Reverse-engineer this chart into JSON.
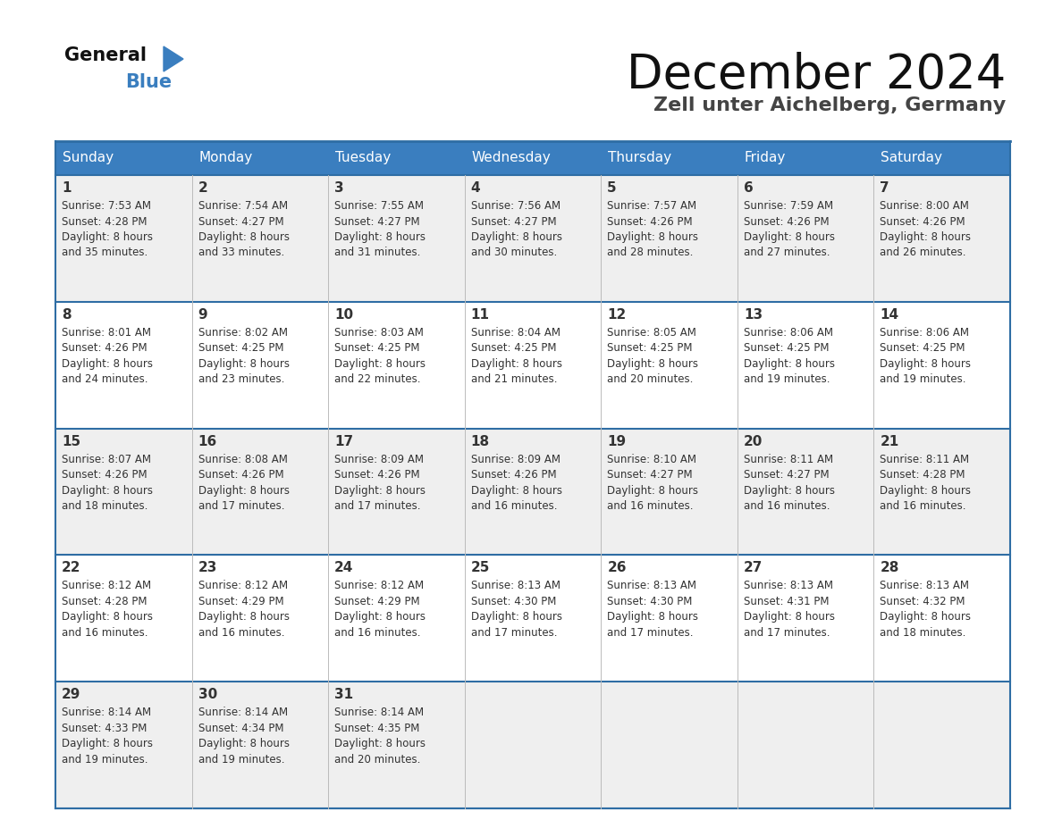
{
  "title": "December 2024",
  "subtitle": "Zell unter Aichelberg, Germany",
  "header_color": "#3a7ebf",
  "header_text_color": "#ffffff",
  "days_of_week": [
    "Sunday",
    "Monday",
    "Tuesday",
    "Wednesday",
    "Thursday",
    "Friday",
    "Saturday"
  ],
  "bg_color": "#ffffff",
  "cell_bg_even": "#efefef",
  "cell_bg_odd": "#ffffff",
  "row_separator_color": "#2e6da4",
  "text_color": "#333333",
  "calendar": [
    [
      {
        "day": 1,
        "sunrise": "7:53 AM",
        "sunset": "4:28 PM",
        "daylight_h": "8 hours",
        "daylight_m": "and 35 minutes."
      },
      {
        "day": 2,
        "sunrise": "7:54 AM",
        "sunset": "4:27 PM",
        "daylight_h": "8 hours",
        "daylight_m": "and 33 minutes."
      },
      {
        "day": 3,
        "sunrise": "7:55 AM",
        "sunset": "4:27 PM",
        "daylight_h": "8 hours",
        "daylight_m": "and 31 minutes."
      },
      {
        "day": 4,
        "sunrise": "7:56 AM",
        "sunset": "4:27 PM",
        "daylight_h": "8 hours",
        "daylight_m": "and 30 minutes."
      },
      {
        "day": 5,
        "sunrise": "7:57 AM",
        "sunset": "4:26 PM",
        "daylight_h": "8 hours",
        "daylight_m": "and 28 minutes."
      },
      {
        "day": 6,
        "sunrise": "7:59 AM",
        "sunset": "4:26 PM",
        "daylight_h": "8 hours",
        "daylight_m": "and 27 minutes."
      },
      {
        "day": 7,
        "sunrise": "8:00 AM",
        "sunset": "4:26 PM",
        "daylight_h": "8 hours",
        "daylight_m": "and 26 minutes."
      }
    ],
    [
      {
        "day": 8,
        "sunrise": "8:01 AM",
        "sunset": "4:26 PM",
        "daylight_h": "8 hours",
        "daylight_m": "and 24 minutes."
      },
      {
        "day": 9,
        "sunrise": "8:02 AM",
        "sunset": "4:25 PM",
        "daylight_h": "8 hours",
        "daylight_m": "and 23 minutes."
      },
      {
        "day": 10,
        "sunrise": "8:03 AM",
        "sunset": "4:25 PM",
        "daylight_h": "8 hours",
        "daylight_m": "and 22 minutes."
      },
      {
        "day": 11,
        "sunrise": "8:04 AM",
        "sunset": "4:25 PM",
        "daylight_h": "8 hours",
        "daylight_m": "and 21 minutes."
      },
      {
        "day": 12,
        "sunrise": "8:05 AM",
        "sunset": "4:25 PM",
        "daylight_h": "8 hours",
        "daylight_m": "and 20 minutes."
      },
      {
        "day": 13,
        "sunrise": "8:06 AM",
        "sunset": "4:25 PM",
        "daylight_h": "8 hours",
        "daylight_m": "and 19 minutes."
      },
      {
        "day": 14,
        "sunrise": "8:06 AM",
        "sunset": "4:25 PM",
        "daylight_h": "8 hours",
        "daylight_m": "and 19 minutes."
      }
    ],
    [
      {
        "day": 15,
        "sunrise": "8:07 AM",
        "sunset": "4:26 PM",
        "daylight_h": "8 hours",
        "daylight_m": "and 18 minutes."
      },
      {
        "day": 16,
        "sunrise": "8:08 AM",
        "sunset": "4:26 PM",
        "daylight_h": "8 hours",
        "daylight_m": "and 17 minutes."
      },
      {
        "day": 17,
        "sunrise": "8:09 AM",
        "sunset": "4:26 PM",
        "daylight_h": "8 hours",
        "daylight_m": "and 17 minutes."
      },
      {
        "day": 18,
        "sunrise": "8:09 AM",
        "sunset": "4:26 PM",
        "daylight_h": "8 hours",
        "daylight_m": "and 16 minutes."
      },
      {
        "day": 19,
        "sunrise": "8:10 AM",
        "sunset": "4:27 PM",
        "daylight_h": "8 hours",
        "daylight_m": "and 16 minutes."
      },
      {
        "day": 20,
        "sunrise": "8:11 AM",
        "sunset": "4:27 PM",
        "daylight_h": "8 hours",
        "daylight_m": "and 16 minutes."
      },
      {
        "day": 21,
        "sunrise": "8:11 AM",
        "sunset": "4:28 PM",
        "daylight_h": "8 hours",
        "daylight_m": "and 16 minutes."
      }
    ],
    [
      {
        "day": 22,
        "sunrise": "8:12 AM",
        "sunset": "4:28 PM",
        "daylight_h": "8 hours",
        "daylight_m": "and 16 minutes."
      },
      {
        "day": 23,
        "sunrise": "8:12 AM",
        "sunset": "4:29 PM",
        "daylight_h": "8 hours",
        "daylight_m": "and 16 minutes."
      },
      {
        "day": 24,
        "sunrise": "8:12 AM",
        "sunset": "4:29 PM",
        "daylight_h": "8 hours",
        "daylight_m": "and 16 minutes."
      },
      {
        "day": 25,
        "sunrise": "8:13 AM",
        "sunset": "4:30 PM",
        "daylight_h": "8 hours",
        "daylight_m": "and 17 minutes."
      },
      {
        "day": 26,
        "sunrise": "8:13 AM",
        "sunset": "4:30 PM",
        "daylight_h": "8 hours",
        "daylight_m": "and 17 minutes."
      },
      {
        "day": 27,
        "sunrise": "8:13 AM",
        "sunset": "4:31 PM",
        "daylight_h": "8 hours",
        "daylight_m": "and 17 minutes."
      },
      {
        "day": 28,
        "sunrise": "8:13 AM",
        "sunset": "4:32 PM",
        "daylight_h": "8 hours",
        "daylight_m": "and 18 minutes."
      }
    ],
    [
      {
        "day": 29,
        "sunrise": "8:14 AM",
        "sunset": "4:33 PM",
        "daylight_h": "8 hours",
        "daylight_m": "and 19 minutes."
      },
      {
        "day": 30,
        "sunrise": "8:14 AM",
        "sunset": "4:34 PM",
        "daylight_h": "8 hours",
        "daylight_m": "and 19 minutes."
      },
      {
        "day": 31,
        "sunrise": "8:14 AM",
        "sunset": "4:35 PM",
        "daylight_h": "8 hours",
        "daylight_m": "and 20 minutes."
      },
      null,
      null,
      null,
      null
    ]
  ]
}
